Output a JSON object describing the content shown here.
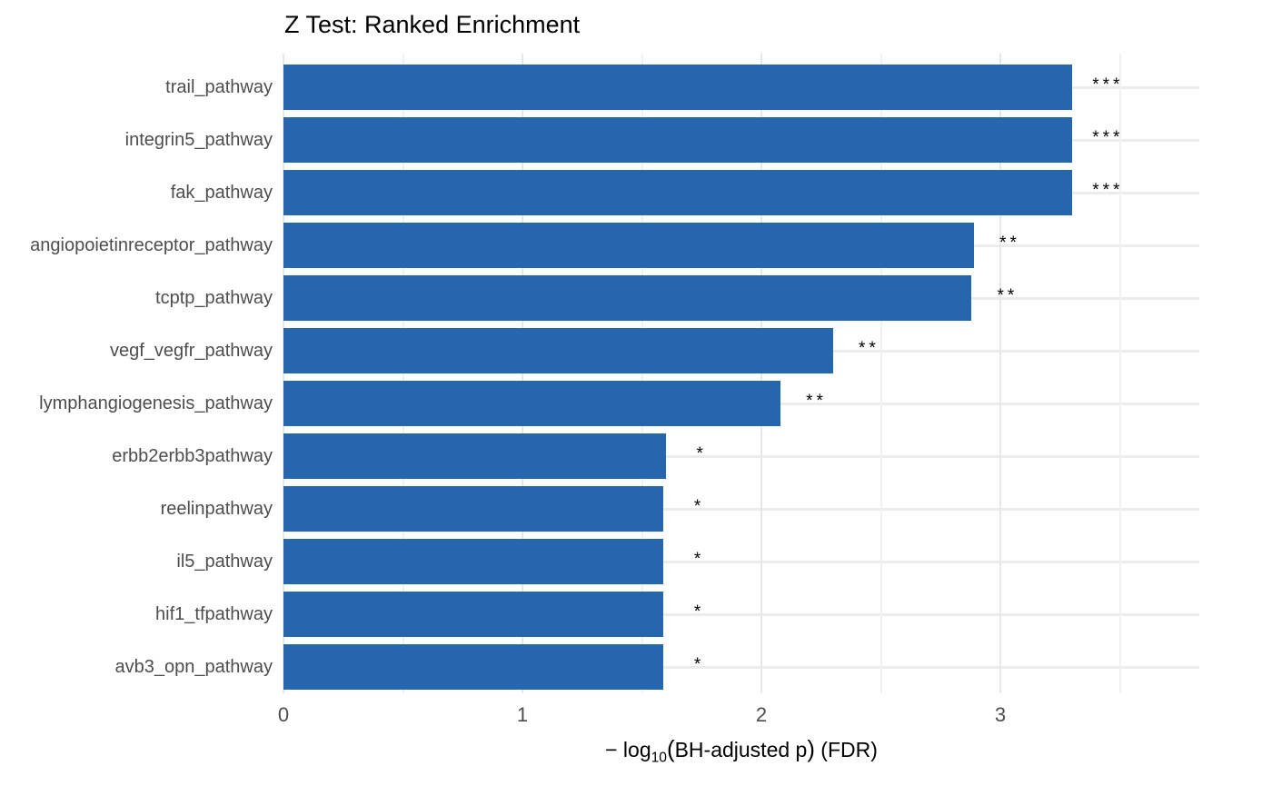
{
  "chart_data": {
    "type": "bar",
    "orientation": "horizontal",
    "title": "Z Test: Ranked Enrichment",
    "xlabel": "−log10(BH-adjusted p) (FDR)",
    "xlabel_parts": {
      "prefix": "− log",
      "sub": "10",
      "open_paren": "(",
      "inner": "BH-adjusted p",
      "close_paren": ")",
      "suffix": " (FDR)"
    },
    "ylabel": "",
    "categories": [
      "trail_pathway",
      "integrin5_pathway",
      "fak_pathway",
      "angiopoietinreceptor_pathway",
      "tcptp_pathway",
      "vegf_vegfr_pathway",
      "lymphangiogenesis_pathway",
      "erbb2erbb3pathway",
      "reelinpathway",
      "il5_pathway",
      "hif1_tfpathway",
      "avb3_opn_pathway"
    ],
    "values": [
      3.3,
      3.3,
      3.3,
      2.89,
      2.88,
      2.3,
      2.08,
      1.6,
      1.59,
      1.59,
      1.59,
      1.59
    ],
    "significance": [
      "***",
      "***",
      "***",
      "**",
      "**",
      "**",
      "**",
      "*",
      "*",
      "*",
      "*",
      "*"
    ],
    "xlim": [
      0,
      3.83
    ],
    "x_major_ticks": [
      0,
      1,
      2,
      3
    ],
    "x_minor_ticks": [
      0.5,
      1.5,
      2.5,
      3.5
    ],
    "grid": "on",
    "legend": "none",
    "colors": {
      "bar": "#2566AD",
      "grid_major_h": "#ECECEC",
      "grid_major_v": "#E7E7E7",
      "grid_minor_v": "#F1F1F1",
      "axis_text": "#4D4D4D",
      "title_text": "#000000",
      "stars": "#000000",
      "background": "#FFFFFF"
    },
    "annotation_offset_units": 0.15
  }
}
